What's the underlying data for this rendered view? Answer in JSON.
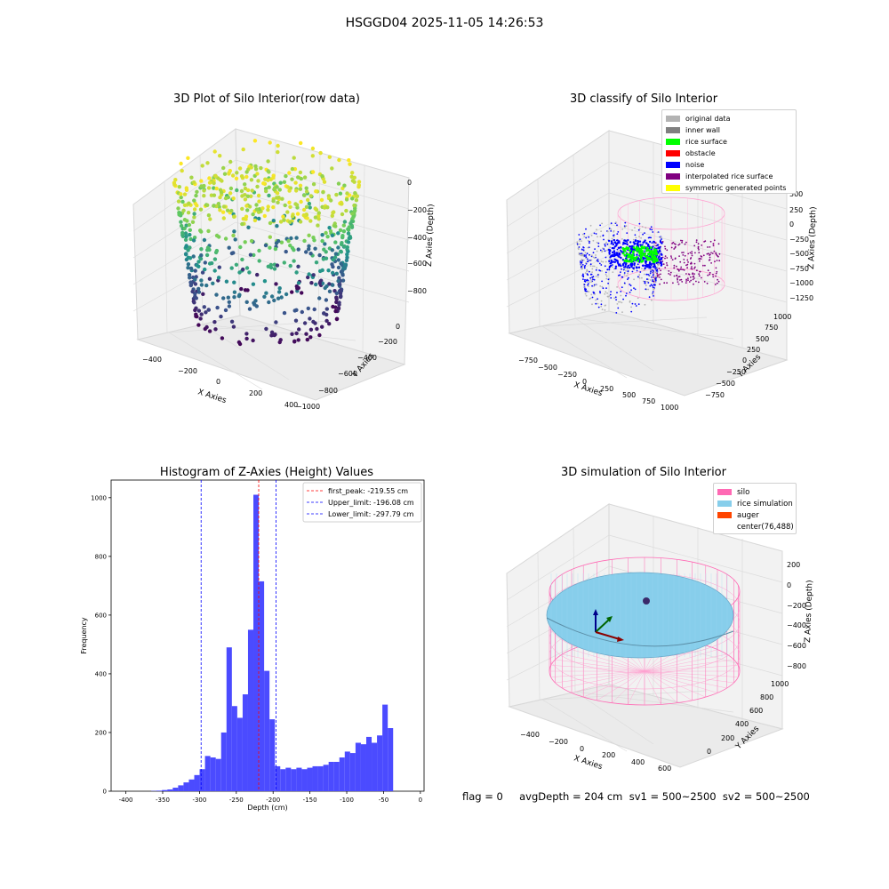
{
  "suptitle": "HSGGD04 2025-11-05 14:26:53",
  "footer": "flag = 0     avgDepth = 204 cm  sv1 = 500~2500  sv2 = 500~2500",
  "panels": {
    "raw": {
      "title": "3D Plot of Silo Interior(row data)",
      "xlabel": "X Axies",
      "ylabel": "Y Axies",
      "zlabel": "Z Axies (Depth)",
      "xticks": [
        "−400",
        "−200",
        "0",
        "200",
        "400"
      ],
      "yticks": [
        "0",
        "−200",
        "−400",
        "−600",
        "−800",
        "−1000"
      ],
      "zticks": [
        "0",
        "−200",
        "−400",
        "−600",
        "−800"
      ]
    },
    "classify": {
      "title": "3D classify of Silo Interior",
      "xlabel": "X Axies",
      "ylabel": "Y Axies",
      "zlabel": "Z Axies (Depth)",
      "xticks": [
        "−750",
        "−500",
        "−250",
        "0",
        "250",
        "500",
        "750",
        "1000"
      ],
      "yticks": [
        "1000",
        "750",
        "500",
        "250",
        "0",
        "−250",
        "−500",
        "−750"
      ],
      "zticks": [
        "500",
        "250",
        "0",
        "−250",
        "−500",
        "−750",
        "−1000",
        "−1250"
      ],
      "legend": [
        {
          "label": "original data",
          "color": "#b3b3b3"
        },
        {
          "label": "inner wall",
          "color": "#808080"
        },
        {
          "label": "rice surface",
          "color": "#00ff00"
        },
        {
          "label": "obstacle",
          "color": "#ff0000"
        },
        {
          "label": "noise",
          "color": "#0000ff"
        },
        {
          "label": "interpolated rice surface",
          "color": "#800080"
        },
        {
          "label": "symmetric generated points",
          "color": "#ffff00"
        }
      ]
    },
    "simulation": {
      "title": "3D simulation of Silo Interior",
      "xlabel": "X Axies",
      "ylabel": "Y Axies",
      "zlabel": "Z Axies (Depth)",
      "xticks": [
        "−400",
        "−200",
        "0",
        "200",
        "400",
        "600"
      ],
      "yticks": [
        "0",
        "200",
        "400",
        "600",
        "800",
        "1000"
      ],
      "zticks": [
        "200",
        "0",
        "−200",
        "−400",
        "−600",
        "−800"
      ],
      "legend": [
        {
          "label": "silo",
          "color": "#ff69b4"
        },
        {
          "label": "rice simulation",
          "color": "#87ceeb"
        },
        {
          "label": "auger",
          "color": "#ff4500"
        },
        {
          "label": "center(76,488)",
          "color": ""
        }
      ]
    }
  },
  "chart_data": {
    "type": "bar",
    "title": "Histogram of Z-Axies (Height) Values",
    "xlabel": "Depth (cm)",
    "ylabel": "Frequency",
    "xlim": [
      -420,
      5
    ],
    "ylim": [
      0,
      1060
    ],
    "xticks": [
      -400,
      -350,
      -300,
      -250,
      -200,
      -150,
      -100,
      -50,
      0
    ],
    "yticks": [
      0,
      200,
      400,
      600,
      800,
      1000
    ],
    "bin_width": 7.3,
    "bin_start": -394.7,
    "values": [
      0,
      0,
      0,
      0,
      1,
      2,
      4,
      6,
      12,
      20,
      30,
      40,
      55,
      75,
      120,
      115,
      110,
      200,
      490,
      290,
      250,
      330,
      550,
      1010,
      715,
      410,
      245,
      85,
      75,
      80,
      75,
      80,
      75,
      80,
      85,
      85,
      90,
      100,
      100,
      115,
      135,
      130,
      165,
      160,
      185,
      165,
      190,
      295,
      215
    ],
    "lines": [
      {
        "label": "first_peak: -219.55 cm",
        "x": -219.55,
        "color": "#ff0000"
      },
      {
        "label": "Upper_limit: -196.08 cm",
        "x": -196.08,
        "color": "#0000ff"
      },
      {
        "label": "Lower_limit: -297.79 cm",
        "x": -297.79,
        "color": "#0000ff"
      }
    ],
    "bar_color": "#4b4bff"
  }
}
